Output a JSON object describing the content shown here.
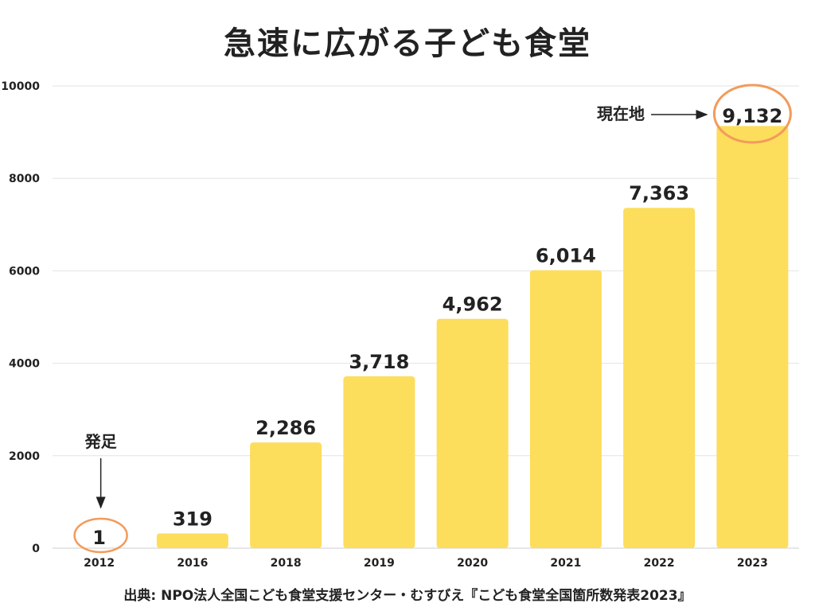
{
  "page": {
    "title": "急速に広がる子ども食堂",
    "source": "出典: NPO法人全国こども食堂支援センター・むすびえ『こども食堂全国箇所数発表2023』"
  },
  "chart_data": {
    "type": "bar",
    "title": "急速に広がる子ども食堂",
    "xlabel": "",
    "ylabel": "",
    "categories": [
      "2012",
      "2016",
      "2018",
      "2019",
      "2020",
      "2021",
      "2022",
      "2023"
    ],
    "values": [
      1,
      319,
      2286,
      3718,
      4962,
      6014,
      7363,
      9132
    ],
    "value_labels": [
      "1",
      "319",
      "2,286",
      "3,718",
      "4,962",
      "6,014",
      "7,363",
      "9,132"
    ],
    "ylim": [
      0,
      10000
    ],
    "yticks": [
      0,
      2000,
      4000,
      6000,
      8000,
      10000
    ],
    "ytick_labels": [
      "0",
      "2000",
      "4000",
      "6000",
      "8000",
      "10000"
    ],
    "grid": true,
    "bar_color": "#FDDD5C",
    "highlight_color": "#F29B5B",
    "annotations": [
      {
        "text": "発足",
        "target_category": "2012",
        "arrow": "down"
      },
      {
        "text": "現在地",
        "target_category": "2023",
        "arrow": "right"
      }
    ],
    "highlighted": [
      "2012",
      "2023"
    ]
  }
}
